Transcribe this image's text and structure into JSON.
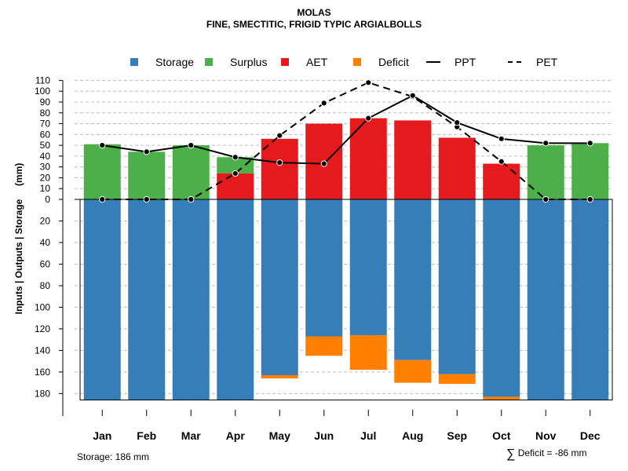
{
  "chart_data": {
    "type": "bar",
    "title": "MOLAS",
    "subtitle": "FINE, SMECTITIC, FRIGID TYPIC ARGIALBOLLS",
    "ylabel": "Inputs | Outputs | Storage     (mm)",
    "categories": [
      "Jan",
      "Feb",
      "Mar",
      "Apr",
      "May",
      "Jun",
      "Jul",
      "Aug",
      "Sep",
      "Oct",
      "Nov",
      "Dec"
    ],
    "upper_ylim": [
      0,
      110
    ],
    "upper_ticks": [
      "110",
      "100",
      "90",
      "80",
      "70",
      "60",
      "50",
      "40",
      "30",
      "20",
      "10",
      "0"
    ],
    "lower_ylim": [
      0,
      186
    ],
    "lower_ticks": [
      "20",
      "40",
      "60",
      "80",
      "100",
      "120",
      "140",
      "160",
      "180"
    ],
    "series": [
      {
        "name": "Storage",
        "color": "#377EB8",
        "type": "bar-down",
        "values": [
          186,
          186,
          186,
          186,
          163,
          127,
          126,
          149,
          162,
          183,
          186,
          186
        ]
      },
      {
        "name": "Deficit",
        "color": "#FF7F00",
        "type": "bar-down-stacked",
        "values": [
          0,
          0,
          0,
          0,
          3,
          18,
          32,
          21,
          9,
          3,
          0,
          0
        ]
      },
      {
        "name": "AET",
        "color": "#E41A1C",
        "type": "bar-up",
        "values": [
          0,
          0,
          0,
          24,
          56,
          70,
          75,
          73,
          57,
          33,
          0,
          0
        ]
      },
      {
        "name": "Surplus",
        "color": "#4DAF4A",
        "type": "bar-up-stacked",
        "values": [
          51,
          44,
          50,
          15,
          0,
          0,
          0,
          0,
          0,
          0,
          50,
          52
        ]
      },
      {
        "name": "PPT",
        "color": "#000000",
        "type": "line-solid",
        "values": [
          50,
          44,
          50,
          39,
          34,
          33,
          75,
          96,
          71,
          56,
          52,
          52
        ]
      },
      {
        "name": "PET",
        "color": "#000000",
        "type": "line-dashed",
        "values": [
          0,
          0,
          0,
          24,
          59,
          89,
          108,
          95,
          67,
          35,
          0,
          0
        ]
      }
    ],
    "legend": [
      {
        "label": "Storage",
        "kind": "square",
        "color": "#377EB8"
      },
      {
        "label": "Surplus",
        "kind": "square",
        "color": "#4DAF4A"
      },
      {
        "label": "AET",
        "kind": "square",
        "color": "#E41A1C"
      },
      {
        "label": "Deficit",
        "kind": "square",
        "color": "#FF7F00"
      },
      {
        "label": "PPT",
        "kind": "solid-line",
        "color": "#000000"
      },
      {
        "label": "PET",
        "kind": "dashed-line",
        "color": "#000000"
      }
    ],
    "legend_position": "top",
    "grid": true
  },
  "notes": {
    "storage": "Storage: 186 mm",
    "deficit_symbol": "∑",
    "deficit": "Deficit = -86 mm"
  }
}
